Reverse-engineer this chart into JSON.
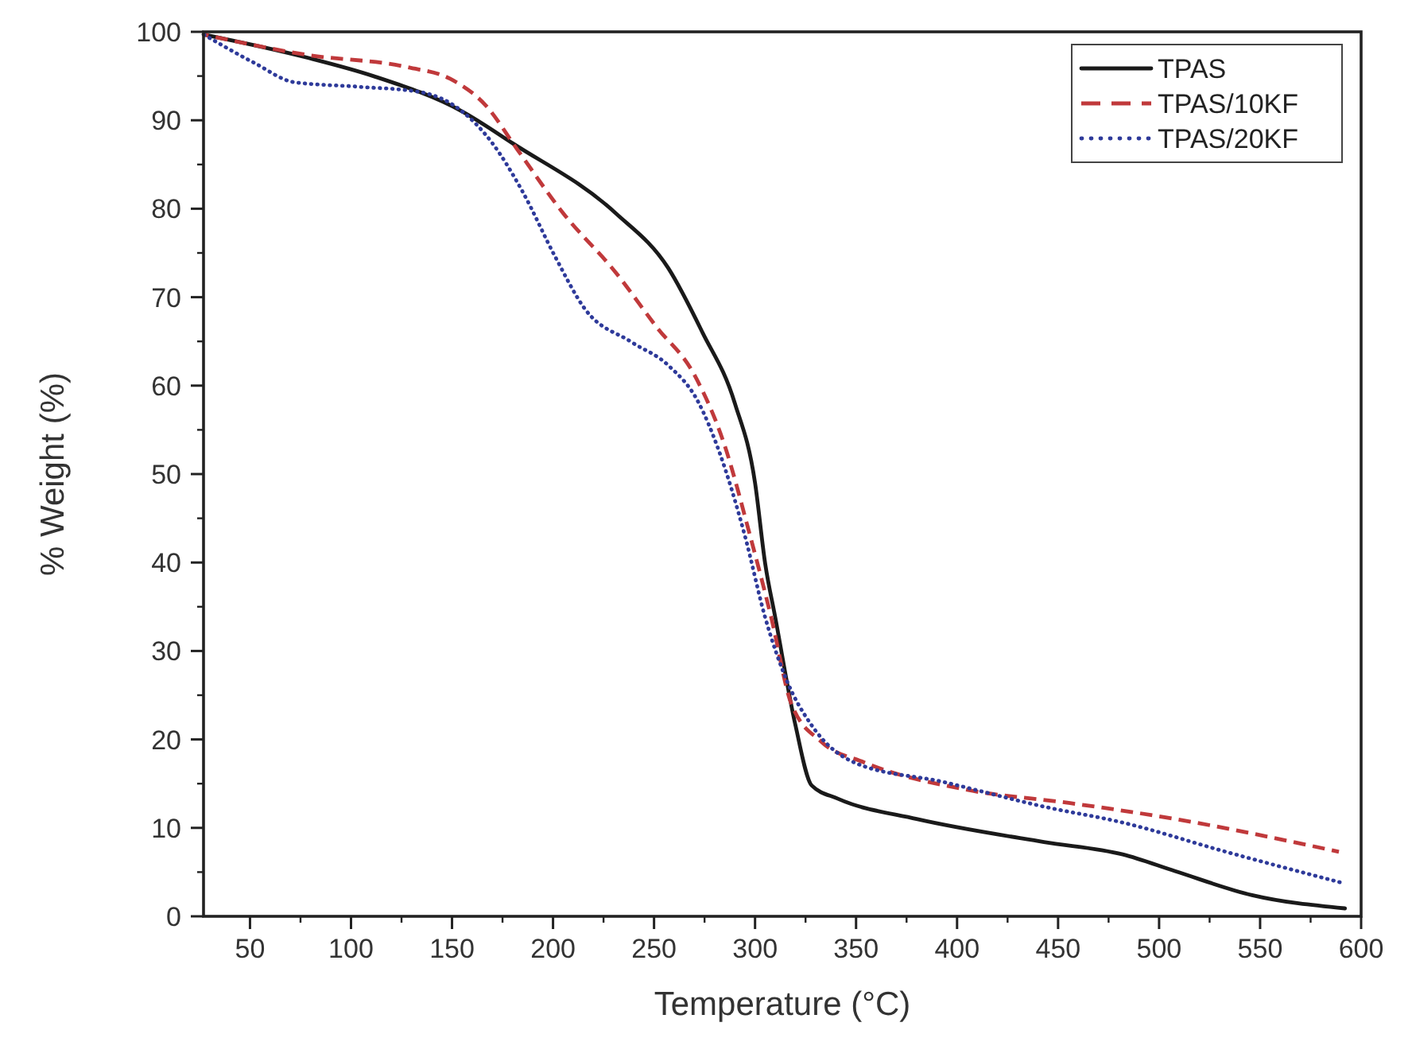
{
  "chart_data": {
    "type": "line",
    "xlabel": "Temperature (°C)",
    "ylabel": "% Weight (%)",
    "xlim": [
      27,
      600
    ],
    "ylim": [
      0,
      100
    ],
    "xticks": [
      50,
      100,
      150,
      200,
      250,
      300,
      350,
      400,
      450,
      500,
      550,
      600
    ],
    "yticks": [
      0,
      10,
      20,
      30,
      40,
      50,
      60,
      70,
      80,
      90,
      100
    ],
    "grid": false,
    "legend": "top right",
    "series": [
      {
        "name": "TPAS",
        "color": "#1a1a1a",
        "line_style": "solid",
        "x": [
          27,
          78,
          111,
          155,
          180,
          231,
          257,
          274,
          290,
          300,
          305,
          310,
          320,
          328,
          341,
          380,
          443,
          482,
          508,
          546,
          592
        ],
        "values": [
          99.7,
          97.1,
          95,
          91,
          87.4,
          79.5,
          73.3,
          66,
          58,
          49,
          39.9,
          33.8,
          21.6,
          14.8,
          13.3,
          11,
          8.4,
          7,
          5.1,
          2.4,
          0.9
        ]
      },
      {
        "name": "TPAS/10KF",
        "color": "#c0393b",
        "line_style": "dashed",
        "x": [
          27,
          78,
          128,
          149,
          167,
          182,
          205,
          231,
          251,
          270,
          285,
          297,
          308,
          318,
          333,
          354,
          405,
          456,
          508,
          589
        ],
        "values": [
          99.7,
          97.4,
          96,
          94.7,
          91.6,
          86.8,
          79.5,
          72.8,
          66.7,
          61.2,
          53.2,
          43.5,
          33.8,
          24,
          19.7,
          17.4,
          14.3,
          12.8,
          11,
          7.3
        ]
      },
      {
        "name": "TPAS/20KF",
        "color": "#2e3a9a",
        "line_style": "dotted",
        "x": [
          27,
          52,
          72,
          103,
          134,
          155,
          170,
          185,
          201,
          216,
          239,
          257,
          272,
          282,
          295,
          305,
          316,
          328,
          349,
          393,
          443,
          482,
          533,
          592
        ],
        "values": [
          99.7,
          96.5,
          94.3,
          93.8,
          93.2,
          91,
          87.4,
          81.9,
          74.6,
          68.6,
          64.9,
          62.3,
          58.1,
          52.7,
          43,
          33.8,
          26.5,
          21.6,
          17.4,
          15.2,
          12.4,
          10.6,
          7.3,
          3.7
        ]
      }
    ]
  }
}
